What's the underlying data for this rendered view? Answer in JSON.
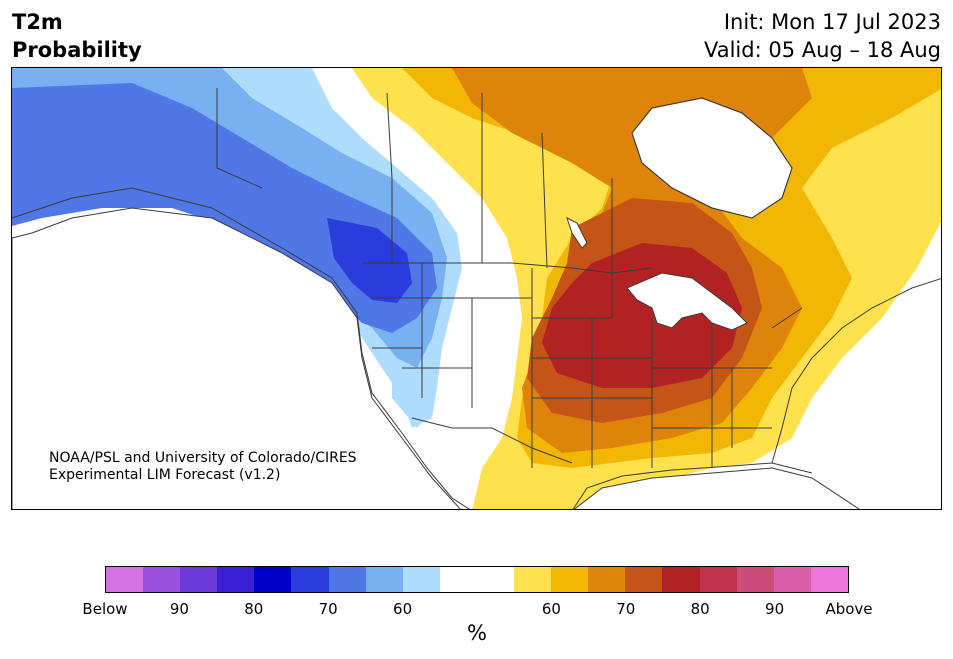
{
  "header": {
    "variable_line1": "T2m",
    "variable_line2": "Probability",
    "init": "Init: Mon 17 Jul 2023",
    "valid": "Valid: 05 Aug – 18 Aug"
  },
  "credit": {
    "line1": "NOAA/PSL and University of Colorado/CIRES",
    "line2": "Experimental LIM Forecast (v1.2)"
  },
  "colorbar": {
    "unit": "%",
    "colors": [
      "#d472e6",
      "#9a52df",
      "#6b3ad9",
      "#3a1fd6",
      "#0000cc",
      "#2a3ddc",
      "#4f77e6",
      "#78b0f2",
      "#aedcfc",
      "#ffffff",
      "#ffffff",
      "#ffe14d",
      "#f2b705",
      "#de840b",
      "#c45516",
      "#b22222",
      "#c0334d",
      "#cc4d7a",
      "#db5ea8",
      "#e877d9"
    ],
    "labels": [
      "Below",
      "90",
      "80",
      "70",
      "60",
      "60",
      "70",
      "80",
      "90",
      "Above"
    ]
  },
  "map": {
    "region": "North America",
    "cold_colors": [
      "#78b0f2",
      "#4f77e6",
      "#2a3ddc",
      "#aedcfc"
    ],
    "warm_colors": [
      "#ffe14d",
      "#f2b705",
      "#de840b",
      "#c45516",
      "#b22222"
    ],
    "border_color": "#3a3a3a"
  }
}
